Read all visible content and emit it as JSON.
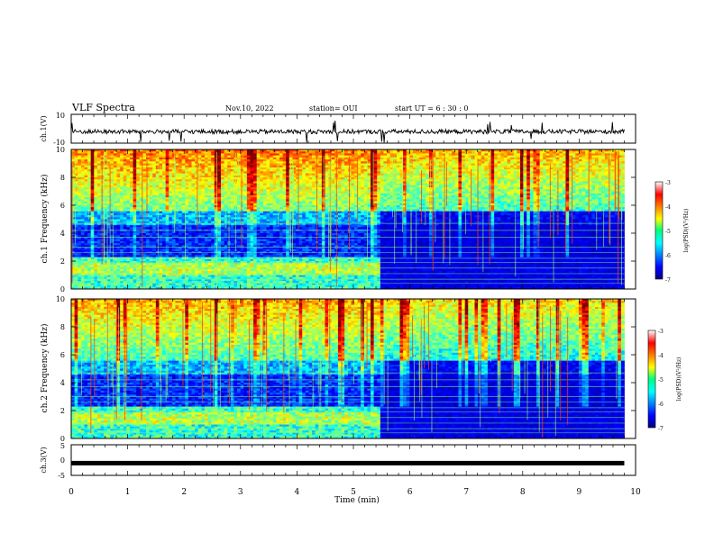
{
  "header": {
    "title": "VLF Spectra",
    "date": "Nov.10, 2022",
    "station": "station= OUI",
    "start": "start  UT =  6 : 30 : 0"
  },
  "chart_data": [
    {
      "type": "line",
      "name": "ch1-waveform",
      "ylabel": "ch.1(V)",
      "ylim": [
        -10,
        10
      ],
      "y_ticks": [
        "10",
        "-10"
      ],
      "xlim": [
        0,
        10
      ],
      "description_values": {
        "baseline": -2,
        "noise_amplitude": 3
      },
      "x_end": 9.8
    },
    {
      "type": "heatmap",
      "name": "ch1-spectrogram",
      "ylabel": "ch.1  Frequency  (kHz)",
      "ylim": [
        0,
        10
      ],
      "y_ticks": [
        "0",
        "2",
        "4",
        "6",
        "8",
        "10"
      ],
      "xlim": [
        0,
        10
      ],
      "data_x_end": 9.8,
      "regime_change_x": 5.45,
      "colorbar": {
        "label": "log(PSD)(V²/Hz)",
        "range": [
          -7,
          -3
        ],
        "ticks": [
          "-3",
          "-4",
          "-5",
          "-6",
          "-7"
        ]
      }
    },
    {
      "type": "heatmap",
      "name": "ch2-spectrogram",
      "ylabel": "ch.2  Frequency  (kHz)",
      "ylim": [
        0,
        10
      ],
      "y_ticks": [
        "0",
        "2",
        "4",
        "6",
        "8",
        "10"
      ],
      "xlim": [
        0,
        10
      ],
      "data_x_end": 9.8,
      "regime_change_x": 5.45,
      "colorbar": {
        "label": "log(PSD)(V²/Hz)",
        "range": [
          -7,
          -3
        ],
        "ticks": [
          "-3",
          "-4",
          "-5",
          "-6",
          "-7"
        ]
      }
    },
    {
      "type": "line",
      "name": "ch3-waveform",
      "ylabel": "ch.3(V)",
      "ylim": [
        -5,
        5
      ],
      "y_ticks": [
        "5",
        "0",
        "-5"
      ],
      "xlim": [
        0,
        10
      ],
      "constant_value": -1,
      "x_end": 9.8
    }
  ],
  "xaxis": {
    "label": "Time  (min)",
    "ticks": [
      "0",
      "1",
      "2",
      "3",
      "4",
      "5",
      "6",
      "7",
      "8",
      "9",
      "10"
    ]
  },
  "colors": {
    "jet": [
      "#000080",
      "#0000ff",
      "#00ffff",
      "#ffff00",
      "#ff0000",
      "#800000"
    ]
  }
}
